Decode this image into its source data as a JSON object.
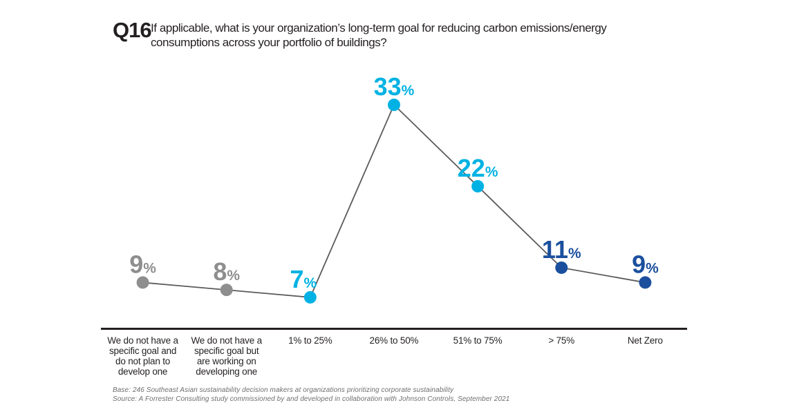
{
  "header": {
    "question_number": "Q16",
    "title": "If applicable, what is your organization’s long-term goal for reducing carbon emissions/energy consumptions across your portfolio of buildings?"
  },
  "chart_data": {
    "type": "line",
    "title": "Q16 If applicable, what is your organization’s long-term goal for reducing carbon emissions/energy consumptions across your portfolio of buildings?",
    "categories": [
      "We do not have a specific goal and do not plan to develop one",
      "We do not have a specific goal but are working on developing one",
      "1% to 25%",
      "26% to 50%",
      "51% to 75%",
      "> 75%",
      "Net Zero"
    ],
    "values": [
      9,
      8,
      7,
      33,
      22,
      11,
      9
    ],
    "value_unit": "%",
    "point_colors": [
      "#8e8e8e",
      "#8e8e8e",
      "#00b2e3",
      "#00b2e3",
      "#00b2e3",
      "#1b4f9e",
      "#1b4f9e"
    ],
    "line_color": "#5a5a5c",
    "axis_color": "#231f20",
    "grid": false,
    "legend": null,
    "ylim": [
      0,
      36
    ],
    "xlabel": "",
    "ylabel": ""
  },
  "footer": {
    "base": "Base: 246 Southeast Asian sustainability decision makers at organizations prioritizing corporate sustainability",
    "source": "Source: A Forrester Consulting study commissioned by and developed in collaboration with Johnson Controls, September 2021"
  }
}
